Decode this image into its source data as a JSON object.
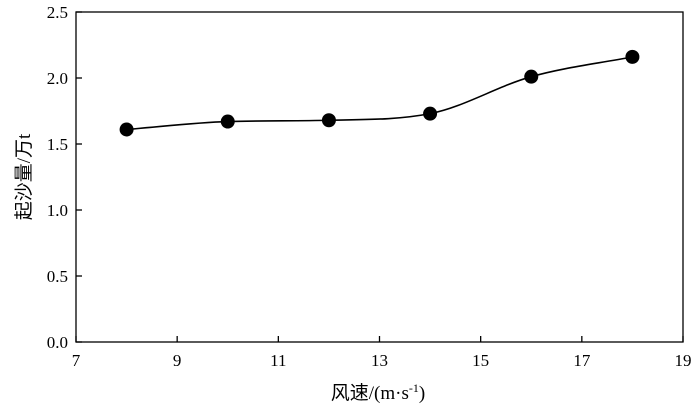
{
  "chart_data": {
    "type": "line",
    "title": "",
    "xlabel_prefix": "风速/(m·s",
    "xlabel_sup": "-1",
    "xlabel_suffix": ")",
    "ylabel": "起沙量/万t",
    "xlim": [
      7,
      19
    ],
    "ylim": [
      0.0,
      2.5
    ],
    "xticks": [
      "7",
      "9",
      "11",
      "13",
      "15",
      "17",
      "19"
    ],
    "yticks": [
      "0.0",
      "0.5",
      "1.0",
      "1.5",
      "2.0",
      "2.5"
    ],
    "grid": false,
    "legend": false,
    "marker": "filled-circle",
    "line_style": "smooth",
    "color": "#000000",
    "series": [
      {
        "x": [
          8,
          10,
          12,
          14,
          16,
          18
        ],
        "y": [
          1.61,
          1.67,
          1.68,
          1.73,
          2.01,
          2.16
        ]
      }
    ]
  }
}
